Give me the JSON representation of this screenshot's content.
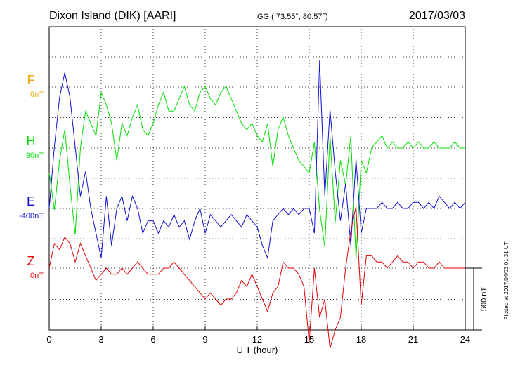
{
  "chart_data": {
    "type": "line",
    "title": "Dixon Island (DIK)  [AARI]",
    "subtitle": "GG ( 73.55°,  80.57°)",
    "date": "2017/03/03",
    "xlabel": "U T (hour)",
    "xlim": [
      0,
      24
    ],
    "x_ticks": [
      "0",
      "3",
      "6",
      "9",
      "12",
      "15",
      "18",
      "21",
      "24"
    ],
    "scale_label": "500 nT",
    "plot_note": "Plotted at 2017/04/03 01:31  UT",
    "grid": true,
    "channels": [
      {
        "name": "F",
        "baseline_label": "0nT",
        "color": "#f5a500",
        "x": [],
        "values": []
      },
      {
        "name": "H",
        "baseline_label": "90nT",
        "color": "#00e000",
        "x": [
          0,
          0.3,
          0.6,
          0.9,
          1.2,
          1.5,
          1.8,
          2.1,
          2.4,
          2.7,
          3.0,
          3.3,
          3.6,
          3.9,
          4.2,
          4.5,
          4.8,
          5.1,
          5.4,
          5.7,
          6.0,
          6.3,
          6.6,
          6.9,
          7.2,
          7.5,
          7.8,
          8.1,
          8.4,
          8.7,
          9.0,
          9.3,
          9.6,
          9.9,
          10.2,
          10.5,
          10.8,
          11.1,
          11.4,
          11.7,
          12.0,
          12.3,
          12.6,
          12.9,
          13.2,
          13.5,
          13.8,
          14.1,
          14.4,
          14.7,
          15.0,
          15.3,
          15.6,
          15.9,
          16.2,
          16.5,
          16.8,
          17.1,
          17.4,
          17.7,
          18.0,
          18.3,
          18.6,
          18.9,
          19.2,
          19.5,
          19.8,
          20.1,
          20.4,
          20.7,
          21.0,
          21.3,
          21.6,
          21.9,
          22.2,
          22.5,
          22.8,
          23.1,
          23.4,
          23.7,
          24.0
        ],
        "values": [
          -200,
          -500,
          -100,
          150,
          -300,
          -700,
          0,
          300,
          200,
          100,
          450,
          350,
          200,
          -100,
          200,
          100,
          250,
          350,
          150,
          100,
          200,
          350,
          450,
          300,
          300,
          400,
          500,
          350,
          300,
          450,
          500,
          400,
          350,
          450,
          500,
          400,
          300,
          200,
          150,
          200,
          100,
          50,
          200,
          -150,
          150,
          250,
          100,
          0,
          -100,
          -150,
          -200,
          50,
          -500,
          -800,
          100,
          -600,
          -100,
          -300,
          100,
          -900,
          -100,
          -200,
          0,
          50,
          100,
          0,
          50,
          0,
          0,
          50,
          0,
          50,
          0,
          0,
          50,
          0,
          0,
          0,
          50,
          0,
          0
        ],
        "ylim": [
          -1000,
          1000
        ]
      },
      {
        "name": "E",
        "baseline_label": "-400nT",
        "color": "#1010d0",
        "x": [
          0,
          0.3,
          0.6,
          0.9,
          1.2,
          1.5,
          1.8,
          2.1,
          2.4,
          2.7,
          3.0,
          3.3,
          3.6,
          3.9,
          4.2,
          4.5,
          4.8,
          5.1,
          5.4,
          5.7,
          6.0,
          6.3,
          6.6,
          6.9,
          7.2,
          7.5,
          7.8,
          8.1,
          8.4,
          8.7,
          9.0,
          9.3,
          9.6,
          9.9,
          10.2,
          10.5,
          10.8,
          11.1,
          11.4,
          11.7,
          12.0,
          12.3,
          12.6,
          12.9,
          13.2,
          13.5,
          13.8,
          14.1,
          14.4,
          14.7,
          15.0,
          15.3,
          15.6,
          15.9,
          16.2,
          16.5,
          16.8,
          17.1,
          17.4,
          17.7,
          18.0,
          18.3,
          18.6,
          18.9,
          19.2,
          19.5,
          19.8,
          20.1,
          20.4,
          20.7,
          21.0,
          21.3,
          21.6,
          21.9,
          22.2,
          22.5,
          22.8,
          23.1,
          23.4,
          23.7,
          24.0
        ],
        "values": [
          0,
          500,
          900,
          1100,
          900,
          500,
          100,
          300,
          0,
          -200,
          -400,
          100,
          -300,
          0,
          100,
          -100,
          100,
          0,
          -200,
          -100,
          -100,
          -200,
          -100,
          -150,
          -50,
          -150,
          -100,
          -250,
          -100,
          0,
          -200,
          -50,
          -100,
          -150,
          -100,
          -50,
          -100,
          -150,
          -50,
          -100,
          -150,
          -300,
          -400,
          -100,
          -50,
          0,
          -50,
          0,
          -50,
          0,
          0,
          -200,
          1200,
          100,
          800,
          300,
          -100,
          200,
          -300,
          400,
          -200,
          0,
          0,
          0,
          50,
          0,
          0,
          50,
          0,
          0,
          50,
          50,
          0,
          50,
          0,
          100,
          50,
          0,
          50,
          0,
          50
        ],
        "ylim": [
          -1000,
          1000
        ]
      },
      {
        "name": "Z",
        "baseline_label": "0nT",
        "color": "#e00000",
        "x": [
          0,
          0.3,
          0.6,
          0.9,
          1.2,
          1.5,
          1.8,
          2.1,
          2.4,
          2.7,
          3.0,
          3.3,
          3.6,
          3.9,
          4.2,
          4.5,
          4.8,
          5.1,
          5.4,
          5.7,
          6.0,
          6.3,
          6.6,
          6.9,
          7.2,
          7.5,
          7.8,
          8.1,
          8.4,
          8.7,
          9.0,
          9.3,
          9.6,
          9.9,
          10.2,
          10.5,
          10.8,
          11.1,
          11.4,
          11.7,
          12.0,
          12.3,
          12.6,
          12.9,
          13.2,
          13.5,
          13.8,
          14.1,
          14.4,
          14.7,
          15.0,
          15.3,
          15.6,
          15.9,
          16.2,
          16.5,
          16.8,
          17.1,
          17.4,
          17.7,
          18.0,
          18.3,
          18.6,
          18.9,
          19.2,
          19.5,
          19.8,
          20.1,
          20.4,
          20.7,
          21.0,
          21.3,
          21.6,
          21.9,
          22.2,
          22.5,
          22.8,
          23.1,
          23.4,
          23.7,
          24.0
        ],
        "values": [
          0,
          200,
          150,
          250,
          200,
          50,
          200,
          100,
          0,
          -100,
          -50,
          0,
          -50,
          -50,
          0,
          -50,
          0,
          50,
          0,
          -50,
          -50,
          -50,
          0,
          0,
          50,
          0,
          -50,
          -100,
          -150,
          -200,
          -250,
          -200,
          -250,
          -300,
          -250,
          -250,
          -200,
          -100,
          -150,
          -50,
          -150,
          -250,
          -350,
          -200,
          -150,
          50,
          0,
          0,
          -50,
          -150,
          -600,
          0,
          -400,
          -250,
          -650,
          -500,
          -400,
          0,
          300,
          500,
          -300,
          100,
          100,
          50,
          50,
          0,
          50,
          100,
          50,
          50,
          0,
          50,
          50,
          0,
          0,
          50,
          0,
          0,
          0,
          0,
          0
        ],
        "ylim": [
          -1000,
          1000
        ]
      }
    ]
  }
}
